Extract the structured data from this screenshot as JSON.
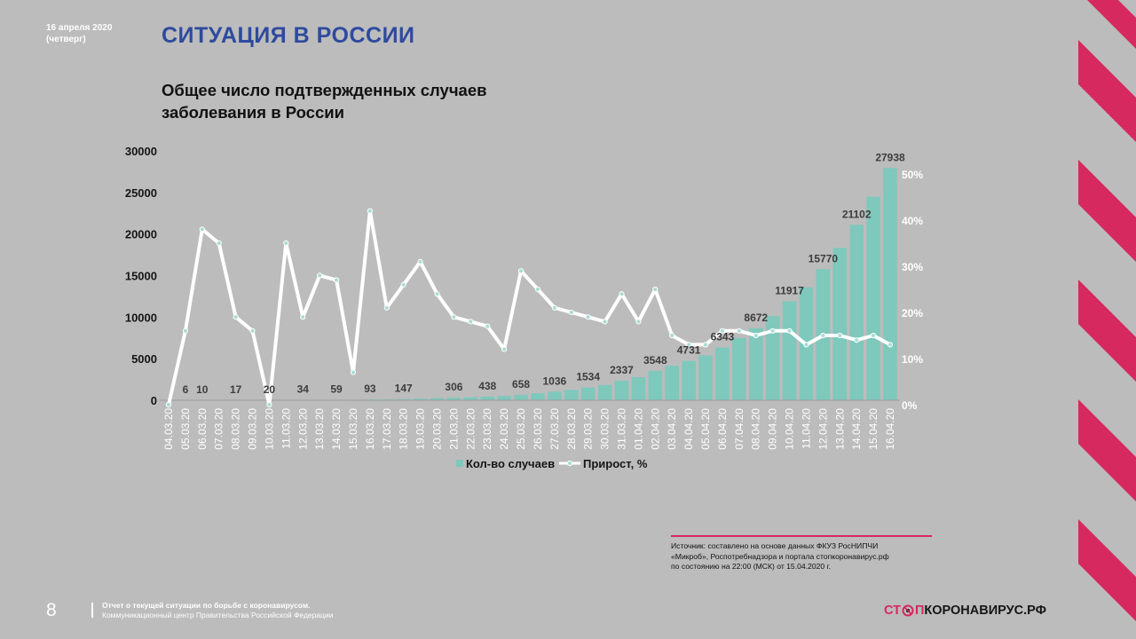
{
  "header": {
    "date_line1": "16 апреля 2020",
    "date_line2": "(четверг)",
    "title": "СИТУАЦИЯ В РОССИИ",
    "subtitle_line1": "Общее число подтвержденных случаев",
    "subtitle_line2": "заболевания в России"
  },
  "chart_data": {
    "type": "bar+line",
    "categories": [
      "04.03.20",
      "05.03.20",
      "06.03.20",
      "07.03.20",
      "08.03.20",
      "09.03.20",
      "10.03.20",
      "11.03.20",
      "12.03.20",
      "13.03.20",
      "14.03.20",
      "15.03.20",
      "16.03.20",
      "17.03.20",
      "18.03.20",
      "19.03.20",
      "20.03.20",
      "21.03.20",
      "22.03.20",
      "23.03.20",
      "24.03.20",
      "25.03.20",
      "26.03.20",
      "27.03.20",
      "28.03.20",
      "29.03.20",
      "30.03.20",
      "31.03.20",
      "01.04.20",
      "02.04.20",
      "03.04.20",
      "04.04.20",
      "05.04.20",
      "06.04.20",
      "07.04.20",
      "08.04.20",
      "09.04.20",
      "10.04.20",
      "11.04.20",
      "12.04.20",
      "13.04.20",
      "14.04.20",
      "15.04.20",
      "16.04.20"
    ],
    "series": [
      {
        "name": "Кол-во случаев",
        "type": "bar",
        "axis": "left",
        "values": [
          3,
          6,
          10,
          14,
          17,
          17,
          20,
          28,
          34,
          45,
          59,
          63,
          93,
          114,
          147,
          199,
          253,
          306,
          367,
          438,
          495,
          658,
          840,
          1036,
          1264,
          1534,
          1836,
          2337,
          2777,
          3548,
          4149,
          4731,
          5389,
          6343,
          7497,
          8672,
          10131,
          11917,
          13584,
          15770,
          18328,
          21102,
          24490,
          27938
        ],
        "labels": [
          "",
          "6",
          "10",
          "",
          "17",
          "",
          "20",
          "",
          "34",
          "",
          "59",
          "",
          "93",
          "",
          "147",
          "",
          "",
          "306",
          "",
          "438",
          "",
          "658",
          "",
          "1036",
          "",
          "1534",
          "",
          "2337",
          "",
          "3548",
          "",
          "4731",
          "",
          "6343",
          "",
          "8672",
          "",
          "11917",
          "",
          "15770",
          "",
          "21102",
          "",
          "27938"
        ]
      },
      {
        "name": "Прирост, %",
        "type": "line",
        "axis": "right",
        "values": [
          0,
          16,
          38,
          35,
          19,
          16,
          0,
          35,
          19,
          28,
          27,
          7,
          42,
          21,
          26,
          31,
          24,
          19,
          18,
          17,
          12,
          29,
          25,
          21,
          20,
          19,
          18,
          24,
          18,
          25,
          15,
          13,
          13,
          16,
          16,
          15,
          16,
          16,
          13,
          15,
          15,
          14,
          15,
          13
        ]
      }
    ],
    "y_left": {
      "min": 0,
      "max": 30000,
      "ticks": [
        "0",
        "5000",
        "10000",
        "15000",
        "20000",
        "25000",
        "30000"
      ]
    },
    "y_right": {
      "min": 0,
      "max": 50,
      "ticks": [
        "0%",
        "10%",
        "20%",
        "30%",
        "40%",
        "50%"
      ]
    },
    "legend_position": "bottom",
    "bar_color": "#7ec8bc",
    "line_color": "#ffffff",
    "marker_color": "#a8ddd5"
  },
  "source": {
    "line1": "Источник: составлено на основе данных ФКУЗ РосНИПЧИ",
    "line2": "«Микроб», Роспотребнадзора и портала стопкоронавирус.рф",
    "line3": "по состоянию на 22:00 (МСК) от 15.04.2020 г."
  },
  "footer": {
    "page_number": "8",
    "line1": "Отчет о текущей ситуации по борьбе с коронавирусом.",
    "line2": "Коммуникационный центр Правительства Российской Федерации",
    "logo_part1": "СТ",
    "logo_part2": "П",
    "logo_part3": "КОРОНАВИРУС.РФ"
  },
  "colors": {
    "background": "#bcbcbc",
    "title": "#2e4a9e",
    "accent": "#d6285f"
  }
}
